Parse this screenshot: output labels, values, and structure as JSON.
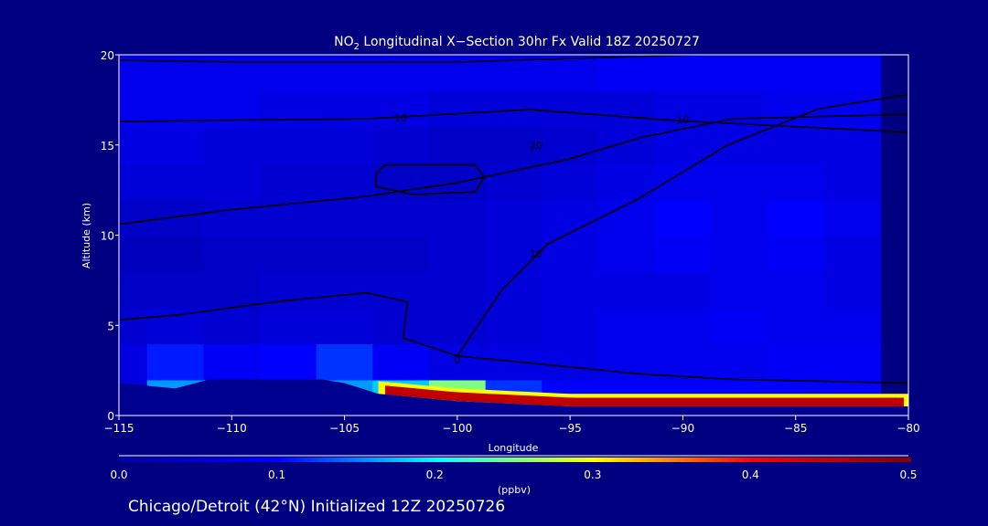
{
  "chart_data": {
    "type": "heatmap",
    "title_prefix": "NO",
    "title_sub": "2",
    "title_rest": " Longitudinal X−Section 30hr  Fx Valid 18Z 20250727",
    "xlabel": "Longitude",
    "ylabel": "Altitude (km)",
    "xlim": [
      -115,
      -80
    ],
    "ylim": [
      0,
      20
    ],
    "xticks": [
      -115,
      -110,
      -105,
      -100,
      -95,
      -90,
      -85,
      -80
    ],
    "xtick_labels": [
      "−115",
      "−110",
      "−105",
      "−100",
      "−95",
      "−90",
      "−85",
      "−80"
    ],
    "yticks": [
      0,
      5,
      10,
      15,
      20
    ],
    "ytick_labels": [
      "0",
      "5",
      "10",
      "15",
      "20"
    ],
    "colorbar": {
      "range": [
        0,
        0.5
      ],
      "ticks": [
        "0.0",
        "0.1",
        "0.2",
        "0.3",
        "0.4",
        "0.5"
      ],
      "unit_label": "(ppbv)",
      "stops": [
        "#0000a0",
        "#0000ff",
        "#00ffff",
        "#ffff00",
        "#ff0000",
        "#800000"
      ]
    },
    "grid": {
      "lon_step": 2.5,
      "alt_step": 2,
      "values_bottom_to_top": [
        [
          0.06,
          0.16,
          0.2,
          0.12,
          0.16,
          0.18,
          0.25,
          0.12,
          0.1,
          0.1,
          0.1,
          0.1,
          0.1,
          0.1
        ],
        [
          0.07,
          0.11,
          0.09,
          0.1,
          0.12,
          0.09,
          0.07,
          0.07,
          0.07,
          0.08,
          0.08,
          0.08,
          0.09,
          0.09
        ],
        [
          0.05,
          0.06,
          0.05,
          0.06,
          0.06,
          0.05,
          0.05,
          0.06,
          0.07,
          0.08,
          0.08,
          0.09,
          0.08,
          0.08
        ],
        [
          0.04,
          0.04,
          0.04,
          0.05,
          0.05,
          0.05,
          0.05,
          0.06,
          0.07,
          0.07,
          0.07,
          0.08,
          0.08,
          0.07
        ],
        [
          0.03,
          0.03,
          0.04,
          0.04,
          0.04,
          0.04,
          0.05,
          0.06,
          0.07,
          0.08,
          0.09,
          0.08,
          0.09,
          0.07
        ],
        [
          0.04,
          0.04,
          0.05,
          0.05,
          0.05,
          0.05,
          0.05,
          0.06,
          0.07,
          0.08,
          0.1,
          0.08,
          0.1,
          0.08
        ],
        [
          0.06,
          0.06,
          0.06,
          0.05,
          0.05,
          0.04,
          0.04,
          0.05,
          0.06,
          0.07,
          0.08,
          0.08,
          0.08,
          0.07
        ],
        [
          0.07,
          0.07,
          0.06,
          0.06,
          0.06,
          0.05,
          0.04,
          0.04,
          0.05,
          0.06,
          0.07,
          0.07,
          0.07,
          0.07
        ],
        [
          0.08,
          0.08,
          0.08,
          0.07,
          0.07,
          0.07,
          0.06,
          0.06,
          0.06,
          0.06,
          0.07,
          0.07,
          0.08,
          0.08
        ],
        [
          0.08,
          0.08,
          0.08,
          0.08,
          0.08,
          0.08,
          0.08,
          0.08,
          0.08,
          0.09,
          0.09,
          0.09,
          0.09,
          0.09
        ]
      ]
    },
    "terrain": [
      [
        -115,
        1.8
      ],
      [
        -112.5,
        1.5
      ],
      [
        -111,
        2.0
      ],
      [
        -106,
        2.0
      ],
      [
        -105,
        1.8
      ],
      [
        -103.5,
        1.2
      ],
      [
        -100,
        0.8
      ],
      [
        -95,
        0.5
      ],
      [
        -80,
        0.5
      ]
    ],
    "surface_layer": {
      "lon_start": -103.5,
      "lon_end": -80,
      "value": 0.45,
      "thickness_km": 0.7
    },
    "contours": [
      {
        "level": "10",
        "points": [
          [
            -115,
            19.7
          ],
          [
            -110,
            19.6
          ],
          [
            -100,
            19.6
          ],
          [
            -89.5,
            20
          ]
        ]
      },
      {
        "level": "10",
        "points": [
          [
            -115,
            16.3
          ],
          [
            -104,
            16.45
          ],
          [
            -96.8,
            16.96
          ],
          [
            -90.3,
            16.35
          ],
          [
            -80,
            15.7
          ]
        ],
        "label_at": [
          -102.5,
          16.5
        ]
      },
      {
        "level": "20",
        "points": [
          [
            -103.6,
            13.4
          ],
          [
            -103.2,
            13.9
          ],
          [
            -99.2,
            13.9
          ],
          [
            -98.8,
            13.2
          ],
          [
            -99.2,
            12.4
          ],
          [
            -102,
            12.25
          ],
          [
            -103.6,
            12.7
          ],
          [
            -103.6,
            13.4
          ]
        ],
        "label_at": [
          -96.5,
          15
        ]
      },
      {
        "level": "10",
        "points": [
          [
            -115,
            10.6
          ],
          [
            -110.1,
            11.4
          ],
          [
            -104,
            12.15
          ],
          [
            -100,
            12.9
          ],
          [
            -95.1,
            14.2
          ],
          [
            -91.9,
            15.4
          ],
          [
            -87.8,
            16.45
          ],
          [
            -80,
            16.7
          ]
        ],
        "label_at": [
          -90,
          16.4
        ]
      },
      {
        "level": "0",
        "points": [
          [
            -115,
            5.3
          ],
          [
            -112.2,
            5.6
          ],
          [
            -108.1,
            6.3
          ],
          [
            -104,
            6.8
          ],
          [
            -102.2,
            6.3
          ],
          [
            -102.4,
            4.3
          ],
          [
            -100,
            3.3
          ],
          [
            -95.9,
            2.8
          ],
          [
            -91.9,
            2.3
          ],
          [
            -87.8,
            2.0
          ],
          [
            -80,
            1.8
          ]
        ],
        "label_at": [
          -100,
          3.1
        ]
      },
      {
        "level": "10",
        "points": [
          [
            -100,
            3.3
          ],
          [
            -98,
            7
          ],
          [
            -96,
            9.5
          ],
          [
            -92,
            12
          ],
          [
            -88,
            15
          ],
          [
            -84,
            17
          ],
          [
            -80,
            17.8
          ]
        ],
        "label_at": [
          -96.5,
          9
        ]
      }
    ]
  },
  "footer": "Chicago/Detroit (42°N) Initialized 12Z 20250726"
}
